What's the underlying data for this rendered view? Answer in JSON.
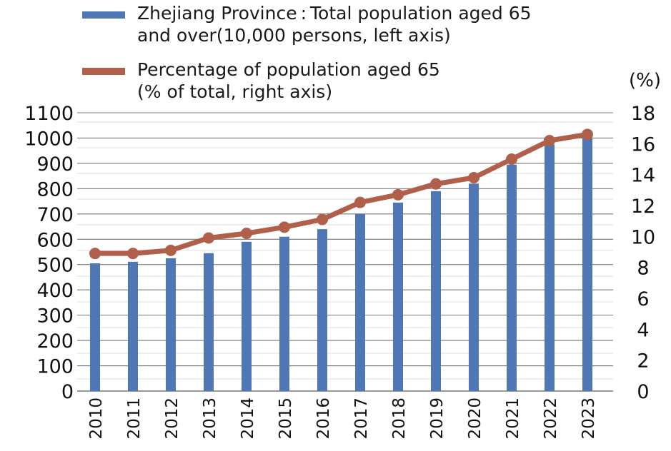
{
  "chart_data": {
    "type": "bar+line",
    "categories": [
      "2010",
      "2011",
      "2012",
      "2013",
      "2014",
      "2015",
      "2016",
      "2017",
      "2018",
      "2019",
      "2020",
      "2021",
      "2022",
      "2023"
    ],
    "series": [
      {
        "name": "Zhejiang Province : Total population aged 65 and over(10,000 persons, left axis)",
        "type": "bar",
        "axis": "left",
        "color": "#4f77b6",
        "values": [
          505,
          511,
          525,
          545,
          590,
          610,
          640,
          700,
          745,
          790,
          820,
          895,
          975,
          1005
        ]
      },
      {
        "name": "Percentage of population aged 65 (% of total, right axis)",
        "type": "line",
        "axis": "right",
        "color": "#b0604a",
        "values": [
          8.9,
          8.9,
          9.1,
          9.9,
          10.2,
          10.6,
          11.1,
          12.2,
          12.7,
          13.4,
          13.8,
          15.0,
          16.2,
          16.6
        ]
      }
    ],
    "left_axis": {
      "ylim": [
        0,
        1100
      ],
      "ticks": [
        0,
        100,
        200,
        300,
        400,
        500,
        600,
        700,
        800,
        900,
        1000,
        1100
      ]
    },
    "right_axis": {
      "unit": "(%)",
      "ylim": [
        0,
        18
      ],
      "ticks": [
        0,
        2,
        4,
        6,
        8,
        10,
        12,
        14,
        16,
        18
      ]
    },
    "legend": {
      "placement": "top",
      "entries": [
        "Zhejiang Province : Total population aged 65\nand over(10,000 persons, left axis)",
        "Percentage of population aged 65\n(% of total, right axis)"
      ]
    },
    "grid": true,
    "xlabel_rotation": -90
  }
}
